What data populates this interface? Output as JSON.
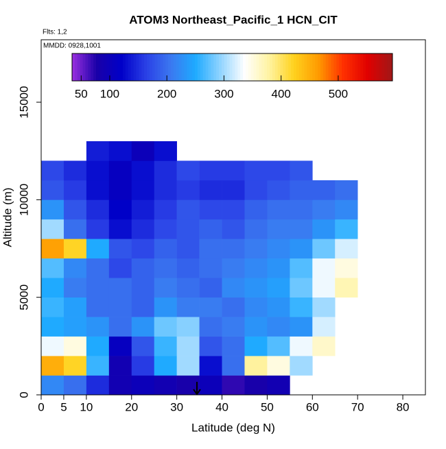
{
  "chart_data": {
    "type": "heatmap",
    "title": "ATOM3 Northeast_Pacific_1 HCN_CIT",
    "flights_label": "Flts: 1,2",
    "dates_label": "MMDD: 0928,1001",
    "x_label": "Latitude (deg N)",
    "y_label": "Altitude (m)",
    "xlim": [
      0,
      85
    ],
    "ylim": [
      0,
      18200
    ],
    "xticks": [
      0,
      5,
      10,
      20,
      30,
      40,
      50,
      60,
      70,
      80
    ],
    "yticks": [
      0,
      5000,
      10000,
      15000
    ],
    "x_edges": [
      0,
      5,
      10,
      15,
      20,
      25,
      30,
      35,
      40,
      45,
      50,
      55,
      60,
      65,
      70
    ],
    "y_edges": [
      0,
      1000,
      2000,
      3000,
      4000,
      5000,
      6000,
      7000,
      8000,
      9000,
      10000,
      11000,
      12000,
      13000
    ],
    "z": [
      [
        220,
        200,
        150,
        90,
        100,
        90,
        80,
        100,
        70,
        80,
        90,
        null,
        null,
        null
      ],
      [
        450,
        420,
        260,
        90,
        160,
        250,
        300,
        130,
        200,
        380,
        350,
        300,
        null,
        null
      ],
      [
        330,
        350,
        250,
        110,
        180,
        260,
        300,
        180,
        200,
        250,
        270,
        330,
        360,
        null
      ],
      [
        250,
        240,
        230,
        200,
        230,
        280,
        290,
        200,
        210,
        230,
        220,
        230,
        320,
        null
      ],
      [
        260,
        240,
        200,
        200,
        190,
        230,
        210,
        210,
        200,
        220,
        230,
        260,
        300,
        null
      ],
      [
        250,
        210,
        200,
        200,
        190,
        210,
        200,
        190,
        220,
        230,
        240,
        280,
        330,
        370
      ],
      [
        270,
        220,
        200,
        170,
        190,
        200,
        190,
        200,
        210,
        220,
        230,
        270,
        330,
        350
      ],
      [
        460,
        420,
        250,
        180,
        170,
        190,
        180,
        200,
        200,
        210,
        220,
        230,
        280,
        320
      ],
      [
        300,
        200,
        160,
        130,
        150,
        170,
        180,
        190,
        180,
        200,
        210,
        210,
        230,
        260
      ],
      [
        230,
        180,
        150,
        120,
        140,
        160,
        180,
        170,
        170,
        190,
        200,
        200,
        210,
        220
      ],
      [
        180,
        160,
        130,
        110,
        130,
        150,
        160,
        150,
        150,
        170,
        180,
        190,
        190,
        200
      ],
      [
        170,
        150,
        130,
        110,
        130,
        150,
        170,
        160,
        160,
        170,
        170,
        180,
        null,
        null
      ],
      [
        null,
        null,
        140,
        130,
        100,
        130,
        null,
        null,
        null,
        null,
        null,
        null,
        null,
        null
      ]
    ],
    "colorbar_lim": [
      34,
      595
    ],
    "colorbar_ticks": [
      50,
      100,
      200,
      300,
      400,
      500
    ],
    "colormap": [
      "#9b30e0",
      "#1a00a8",
      "#0000c8",
      "#2a40e6",
      "#3b78f0",
      "#1eaaff",
      "#8fd3ff",
      "#ffffff",
      "#fff3a0",
      "#ffd21e",
      "#ff9a00",
      "#ff3000",
      "#e00000",
      "#a01818"
    ]
  }
}
